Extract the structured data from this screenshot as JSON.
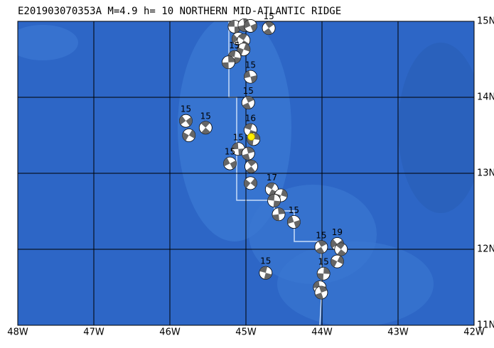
{
  "title": "E201903070353A M=4.9 h= 10 NORTHERN MID-ATLANTIC RIDGE",
  "map": {
    "lon_range": [
      -48,
      -42
    ],
    "lat_range": [
      11,
      15
    ],
    "lon_ticks": [
      {
        "value": -48,
        "label": "48W"
      },
      {
        "value": -47,
        "label": "47W"
      },
      {
        "value": -46,
        "label": "46W"
      },
      {
        "value": -45,
        "label": "45W"
      },
      {
        "value": -44,
        "label": "44W"
      },
      {
        "value": -43,
        "label": "43W"
      },
      {
        "value": -42,
        "label": "42W"
      }
    ],
    "lat_ticks": [
      {
        "value": 11,
        "label": "11N"
      },
      {
        "value": 12,
        "label": "12N"
      },
      {
        "value": 13,
        "label": "13N"
      },
      {
        "value": 14,
        "label": "14N"
      },
      {
        "value": 15,
        "label": "15N"
      }
    ],
    "epicenter": {
      "lon": -44.93,
      "lat": 13.48
    },
    "events": [
      {
        "lon": -45.15,
        "lat": 14.93
      },
      {
        "lon": -45.02,
        "lat": 14.95
      },
      {
        "lon": -44.94,
        "lat": 14.94
      },
      {
        "lon": -44.7,
        "lat": 14.91,
        "label": "15"
      },
      {
        "lon": -45.1,
        "lat": 14.77
      },
      {
        "lon": -45.03,
        "lat": 14.75
      },
      {
        "lon": -45.03,
        "lat": 14.63
      },
      {
        "lon": -45.15,
        "lat": 14.53,
        "label": "15"
      },
      {
        "lon": -45.23,
        "lat": 14.46
      },
      {
        "lon": -44.94,
        "lat": 14.27,
        "label": "15"
      },
      {
        "lon": -44.97,
        "lat": 13.93,
        "label": "15"
      },
      {
        "lon": -45.79,
        "lat": 13.69,
        "label": "15"
      },
      {
        "lon": -45.53,
        "lat": 13.6,
        "label": "15"
      },
      {
        "lon": -45.75,
        "lat": 13.5
      },
      {
        "lon": -44.94,
        "lat": 13.57,
        "label": "16"
      },
      {
        "lon": -44.9,
        "lat": 13.45
      },
      {
        "lon": -45.1,
        "lat": 13.32,
        "label": "15"
      },
      {
        "lon": -44.97,
        "lat": 13.26
      },
      {
        "lon": -45.21,
        "lat": 13.13,
        "label": "15"
      },
      {
        "lon": -44.93,
        "lat": 13.09
      },
      {
        "lon": -44.94,
        "lat": 12.87
      },
      {
        "lon": -44.66,
        "lat": 12.79,
        "label": "17"
      },
      {
        "lon": -44.54,
        "lat": 12.71
      },
      {
        "lon": -44.63,
        "lat": 12.64
      },
      {
        "lon": -44.57,
        "lat": 12.46
      },
      {
        "lon": -44.37,
        "lat": 12.36,
        "label": "15"
      },
      {
        "lon": -44.01,
        "lat": 12.03,
        "label": "15"
      },
      {
        "lon": -43.8,
        "lat": 12.07,
        "label": "19"
      },
      {
        "lon": -43.75,
        "lat": 12.0
      },
      {
        "lon": -43.8,
        "lat": 11.84
      },
      {
        "lon": -44.74,
        "lat": 11.69,
        "label": "15"
      },
      {
        "lon": -43.98,
        "lat": 11.68,
        "label": "15"
      },
      {
        "lon": -44.03,
        "lat": 11.5
      },
      {
        "lon": -44.01,
        "lat": 11.43
      }
    ]
  }
}
